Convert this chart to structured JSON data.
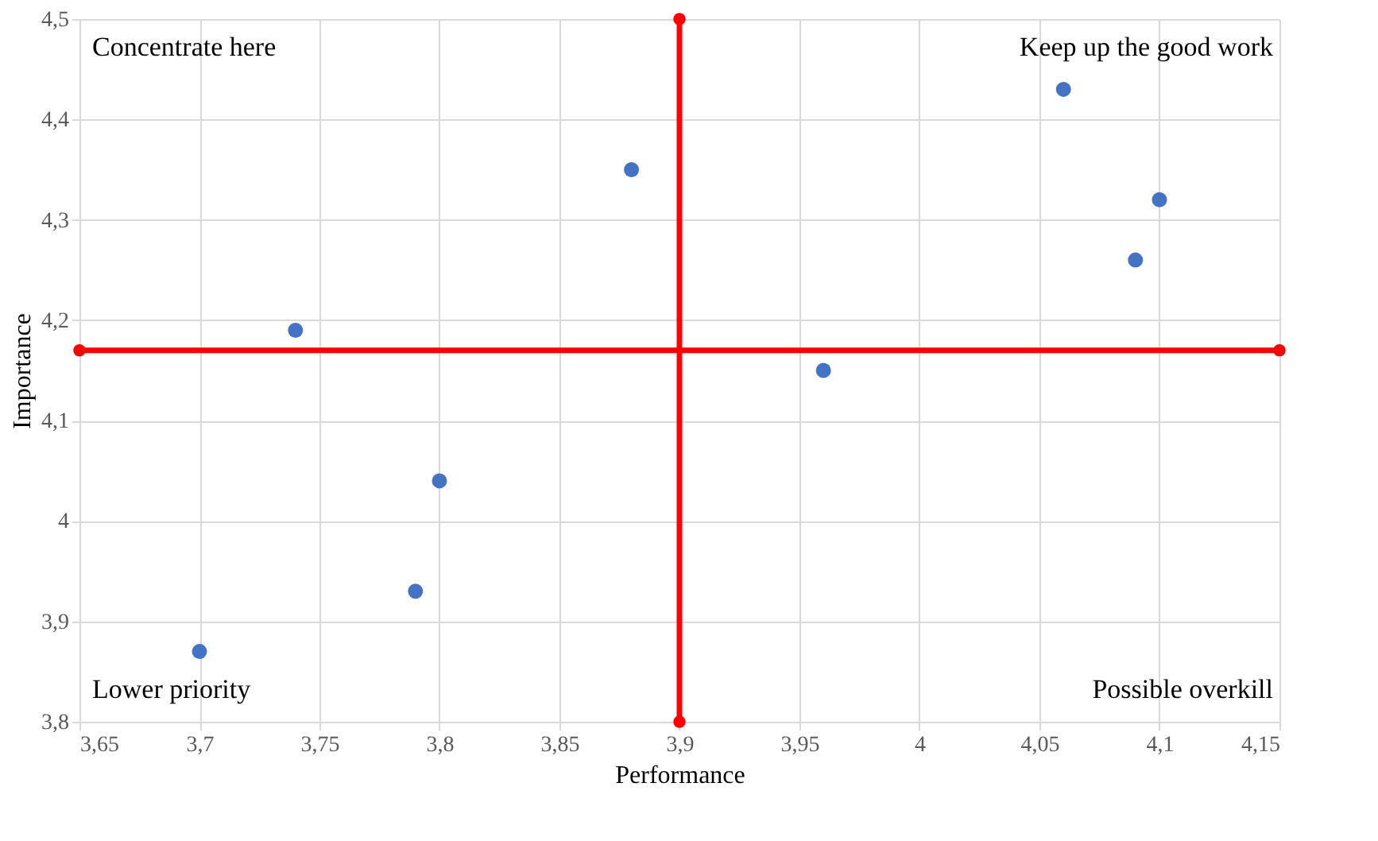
{
  "chart_data": {
    "type": "scatter",
    "xlabel": "Performance",
    "ylabel": "Importance",
    "series": [
      {
        "color": "#4472c4",
        "marker": "circle",
        "x": [
          3.7,
          3.74,
          3.79,
          3.8,
          3.88,
          3.96,
          4.06,
          4.09,
          4.1
        ],
        "values": [
          3.87,
          4.19,
          3.93,
          4.04,
          4.35,
          4.15,
          4.43,
          4.26,
          4.32
        ]
      },
      {
        "type": "line",
        "color": "#ff0000",
        "marker": "circle",
        "line_style": "solid",
        "x": [
          3.65,
          4.15
        ],
        "values": [
          4.17,
          4.17
        ]
      },
      {
        "type": "line",
        "color": "#ff0000",
        "marker": "circle",
        "line_style": "solid",
        "x": [
          3.9,
          3.9
        ],
        "values": [
          3.8,
          4.5
        ]
      }
    ],
    "xlim": [
      3.65,
      4.15
    ],
    "xticks": [
      {
        "value": 3.65,
        "label": "3,65"
      },
      {
        "value": 3.7,
        "label": "3,7"
      },
      {
        "value": 3.75,
        "label": "3,75"
      },
      {
        "value": 3.8,
        "label": "3,8"
      },
      {
        "value": 3.85,
        "label": "3,85"
      },
      {
        "value": 3.9,
        "label": "3,9"
      },
      {
        "value": 3.95,
        "label": "3,95"
      },
      {
        "value": 4,
        "label": "4"
      },
      {
        "value": 4.05,
        "label": "4,05"
      },
      {
        "value": 4.1,
        "label": "4,1"
      },
      {
        "value": 4.15,
        "label": "4,15"
      }
    ],
    "ylim": [
      3.8,
      4.5
    ],
    "yticks": [
      {
        "value": 3.8,
        "label": "3,8"
      },
      {
        "value": 3.9,
        "label": "3,9"
      },
      {
        "value": 4,
        "label": "4"
      },
      {
        "value": 4.1,
        "label": "4,1"
      },
      {
        "value": 4.2,
        "label": "4,2"
      },
      {
        "value": 4.3,
        "label": "4,3"
      },
      {
        "value": 4.4,
        "label": "4,4"
      },
      {
        "value": 4.5,
        "label": "4,5"
      }
    ],
    "grid": true,
    "annotations": [
      "Concentrate here",
      "Keep up the good work",
      "Lower priority",
      "Possible overkill"
    ]
  }
}
